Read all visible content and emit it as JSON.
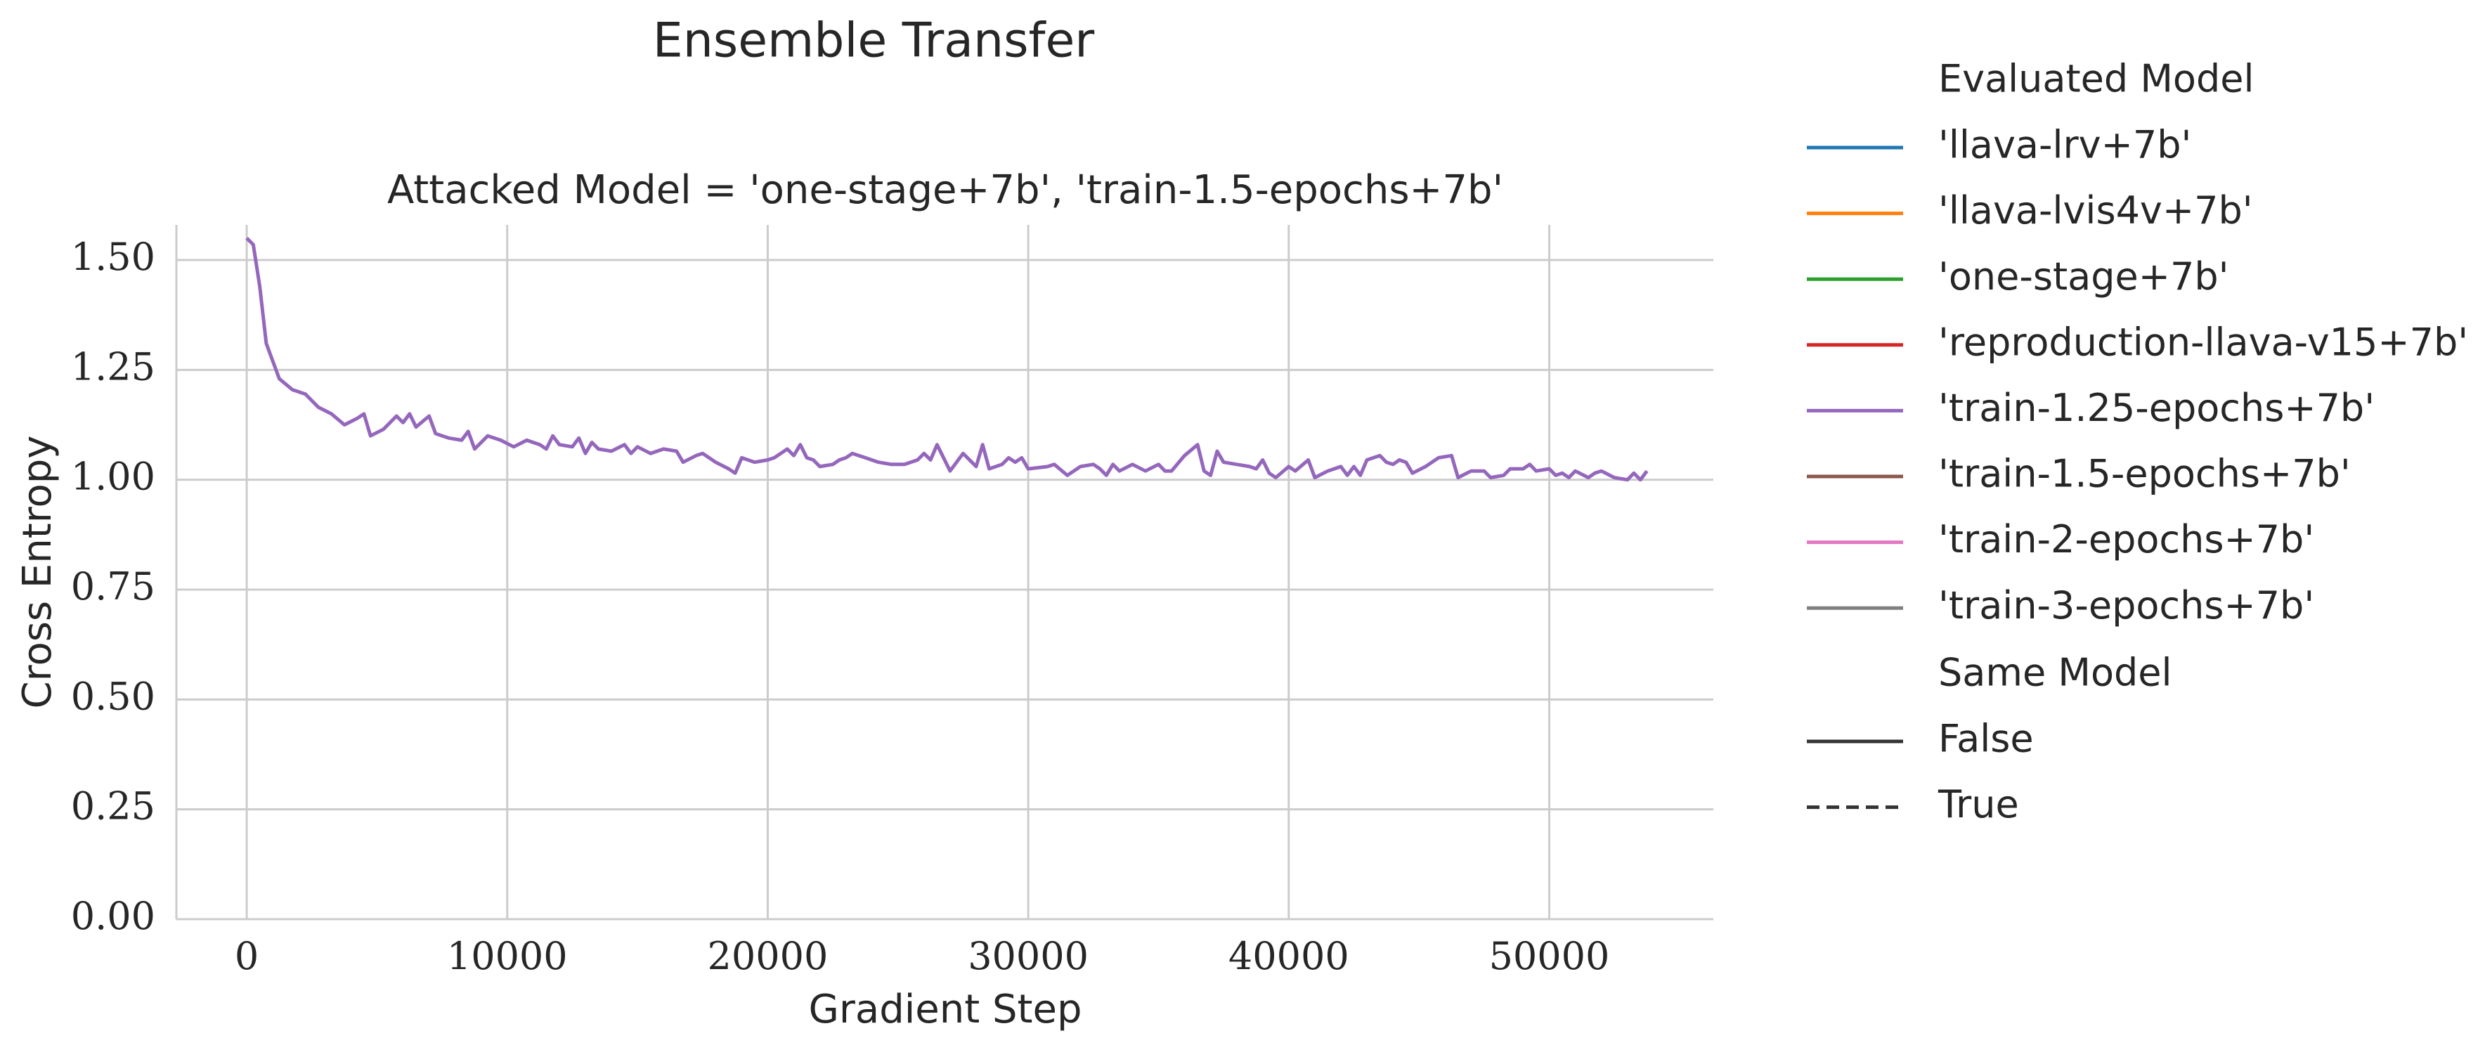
{
  "chart_data": {
    "type": "line",
    "title": "Ensemble Transfer",
    "subtitle": "Attacked Model = 'one-stage+7b', 'train-1.5-epochs+7b'",
    "x_label": "Gradient Step",
    "y_label": "Cross Entropy",
    "xlim": [
      -2700,
      56300
    ],
    "ylim": [
      0,
      1.58
    ],
    "xticks": [
      0,
      10000,
      20000,
      30000,
      40000,
      50000
    ],
    "yticks": [
      {
        "value": 0,
        "label": "0.00"
      },
      {
        "value": 0.25,
        "label": "0.25"
      },
      {
        "value": 0.5,
        "label": "0.50"
      },
      {
        "value": 0.75,
        "label": "0.75"
      },
      {
        "value": 1,
        "label": "1.00"
      },
      {
        "value": 1.25,
        "label": "1.25"
      },
      {
        "value": 1.5,
        "label": "1.50"
      }
    ],
    "grid": true,
    "legend_title": "Evaluated Model",
    "series": [
      {
        "name": "'llava-lrv+7b'",
        "color": "#1f77b4"
      },
      {
        "name": "'llava-lvis4v+7b'",
        "color": "#ff7f0e"
      },
      {
        "name": "'one-stage+7b'",
        "color": "#2ca02c"
      },
      {
        "name": "'reproduction-llava-v15+7b'",
        "color": "#d62728"
      },
      {
        "name": "'train-1.25-epochs+7b'",
        "color": "#9467bd",
        "x": [
          0,
          250,
          500,
          750,
          1250,
          1750,
          2250,
          2750,
          3250,
          3750,
          4250,
          4500,
          4750,
          5250,
          5750,
          6000,
          6250,
          6500,
          7000,
          7250,
          7750,
          8250,
          8500,
          8750,
          9250,
          9750,
          10250,
          10750,
          11250,
          11500,
          11750,
          12000,
          12500,
          12750,
          13000,
          13250,
          13500,
          14000,
          14500,
          14750,
          15000,
          15500,
          16000,
          16500,
          16750,
          17250,
          17500,
          18000,
          18500,
          18750,
          19000,
          19500,
          20000,
          20250,
          20750,
          21000,
          21250,
          21500,
          21750,
          22000,
          22500,
          22750,
          23000,
          23250,
          23750,
          24250,
          24750,
          25250,
          25750,
          26000,
          26250,
          26500,
          26750,
          27000,
          27500,
          28000,
          28250,
          28500,
          29000,
          29250,
          29500,
          29750,
          30000,
          30750,
          31000,
          31500,
          32000,
          32500,
          32750,
          33000,
          33250,
          33500,
          34000,
          34500,
          35000,
          35250,
          35500,
          36000,
          36500,
          36750,
          37000,
          37250,
          37500,
          38000,
          38500,
          38750,
          39000,
          39250,
          39500,
          40000,
          40250,
          40750,
          41000,
          41500,
          42000,
          42250,
          42500,
          42750,
          43000,
          43500,
          43750,
          44000,
          44250,
          44500,
          44750,
          45250,
          45750,
          46250,
          46500,
          47000,
          47500,
          47750,
          48250,
          48500,
          49000,
          49250,
          49500,
          50000,
          50250,
          50500,
          50750,
          51000,
          51500,
          51750,
          52000,
          52500,
          53000,
          53250,
          53500,
          53750
        ],
        "values": [
          1.55,
          1.535,
          1.44,
          1.31,
          1.23,
          1.205,
          1.195,
          1.165,
          1.15,
          1.125,
          1.14,
          1.15,
          1.1,
          1.115,
          1.145,
          1.13,
          1.15,
          1.12,
          1.145,
          1.105,
          1.095,
          1.09,
          1.11,
          1.07,
          1.1,
          1.09,
          1.075,
          1.09,
          1.08,
          1.07,
          1.1,
          1.08,
          1.075,
          1.095,
          1.06,
          1.085,
          1.07,
          1.065,
          1.08,
          1.06,
          1.075,
          1.06,
          1.07,
          1.065,
          1.04,
          1.055,
          1.06,
          1.04,
          1.025,
          1.015,
          1.05,
          1.04,
          1.045,
          1.05,
          1.07,
          1.055,
          1.08,
          1.05,
          1.045,
          1.03,
          1.035,
          1.045,
          1.05,
          1.06,
          1.05,
          1.04,
          1.035,
          1.035,
          1.045,
          1.06,
          1.045,
          1.08,
          1.05,
          1.02,
          1.06,
          1.03,
          1.08,
          1.025,
          1.035,
          1.05,
          1.04,
          1.05,
          1.025,
          1.03,
          1.035,
          1.01,
          1.03,
          1.035,
          1.025,
          1.01,
          1.035,
          1.02,
          1.035,
          1.02,
          1.035,
          1.02,
          1.02,
          1.055,
          1.08,
          1.02,
          1.01,
          1.065,
          1.04,
          1.035,
          1.03,
          1.025,
          1.045,
          1.015,
          1.005,
          1.03,
          1.02,
          1.045,
          1.005,
          1.02,
          1.03,
          1.01,
          1.03,
          1.01,
          1.045,
          1.055,
          1.04,
          1.035,
          1.045,
          1.04,
          1.015,
          1.03,
          1.05,
          1.055,
          1.005,
          1.02,
          1.02,
          1.005,
          1.01,
          1.025,
          1.025,
          1.035,
          1.02,
          1.025,
          1.01,
          1.015,
          1.005,
          1.02,
          1.005,
          1.015,
          1.02,
          1.005,
          1.0,
          1.015,
          1.0,
          1.02
        ]
      },
      {
        "name": "'train-1.5-epochs+7b'",
        "color": "#8c564b"
      },
      {
        "name": "'train-2-epochs+7b'",
        "color": "#e377c2"
      },
      {
        "name": "'train-3-epochs+7b'",
        "color": "#7f7f7f"
      }
    ],
    "style_legend": {
      "title": "Same Model",
      "entries": [
        {
          "name": "False",
          "dash": "solid"
        },
        {
          "name": "True",
          "dash": "dashed"
        }
      ]
    }
  }
}
